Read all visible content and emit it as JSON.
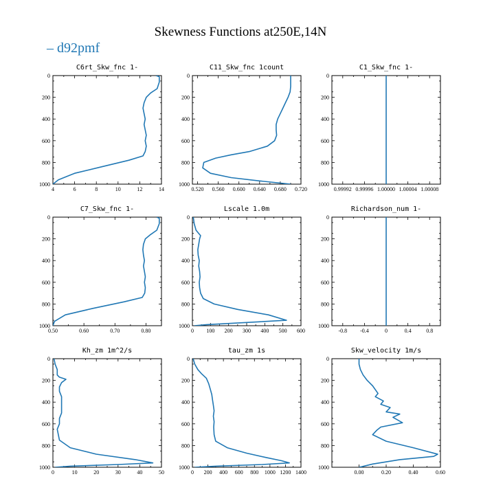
{
  "figure": {
    "title": "Skewness Functions at250E,14N",
    "legend": {
      "label": "d92pmf",
      "color": "#1f77b4"
    },
    "line_color": "#1f77b4"
  },
  "chart_data": [
    {
      "type": "line",
      "title": "C6rt_Skw_fnc   1-",
      "xlim": [
        4,
        14
      ],
      "ylim": [
        1000,
        0
      ],
      "xticks": [
        4,
        6,
        8,
        10,
        12,
        14
      ],
      "xtick_labels": [
        "4",
        "6",
        "8",
        "10",
        "12",
        "14"
      ],
      "yticks": [
        0,
        200,
        400,
        600,
        800,
        1000
      ],
      "ytick_labels": [
        "0",
        "200",
        "400",
        "600",
        "800",
        "1000"
      ],
      "series": [
        {
          "x": [
            13.5,
            13.8,
            13.8,
            13.6,
            13.0,
            12.6,
            12.4,
            12.3,
            12.4,
            12.5,
            12.4,
            12.5,
            12.6,
            12.5,
            12.6,
            12.5,
            12.3,
            11.0,
            8.5,
            6.0,
            4.5,
            4.0
          ],
          "y": [
            0,
            10,
            60,
            120,
            160,
            200,
            250,
            300,
            350,
            400,
            450,
            500,
            550,
            600,
            650,
            700,
            740,
            780,
            840,
            900,
            960,
            1000
          ]
        }
      ]
    },
    {
      "type": "line",
      "title": "C11_Skw_fnc   1count",
      "xlim": [
        0.51,
        0.72
      ],
      "ylim": [
        1000,
        0
      ],
      "xticks": [
        0.52,
        0.56,
        0.6,
        0.64,
        0.68,
        0.72
      ],
      "xtick_labels": [
        "0.520",
        "0.560",
        "0.600",
        "0.640",
        "0.680",
        "0.720"
      ],
      "yticks": [
        0,
        200,
        400,
        600,
        800,
        1000
      ],
      "ytick_labels": [
        "0",
        "200",
        "400",
        "600",
        "800",
        "1000"
      ],
      "series": [
        {
          "x": [
            0.7,
            0.7,
            0.7,
            0.699,
            0.695,
            0.69,
            0.685,
            0.68,
            0.675,
            0.672,
            0.672,
            0.673,
            0.669,
            0.655,
            0.62,
            0.585,
            0.555,
            0.532,
            0.53,
            0.545,
            0.585,
            0.64,
            0.7
          ],
          "y": [
            0,
            50,
            100,
            150,
            200,
            250,
            300,
            350,
            400,
            450,
            500,
            550,
            600,
            650,
            700,
            730,
            760,
            800,
            850,
            900,
            940,
            970,
            1000
          ]
        }
      ]
    },
    {
      "type": "line",
      "title": "C1_Skw_fnc   1-",
      "xlim": [
        0.9999,
        1.0001
      ],
      "ylim": [
        1000,
        0
      ],
      "xticks": [
        0.99992,
        0.99996,
        1.0,
        1.00004,
        1.00008
      ],
      "xtick_labels": [
        "0.99992",
        "0.99996",
        "1.00000",
        "1.00004",
        "1.00008"
      ],
      "yticks": [
        0,
        200,
        400,
        600,
        800,
        1000
      ],
      "ytick_labels": [
        "0",
        "200",
        "400",
        "600",
        "800",
        "1000"
      ],
      "series": [
        {
          "x": [
            1.0,
            1.0
          ],
          "y": [
            0,
            1000
          ]
        }
      ]
    },
    {
      "type": "line",
      "title": "C7_Skw_fnc   1-",
      "xlim": [
        0.5,
        0.85
      ],
      "ylim": [
        1000,
        0
      ],
      "xticks": [
        0.5,
        0.6,
        0.7,
        0.8
      ],
      "xtick_labels": [
        "0.50",
        "0.60",
        "0.70",
        "0.80"
      ],
      "yticks": [
        0,
        200,
        400,
        600,
        800,
        1000
      ],
      "ytick_labels": [
        "0",
        "200",
        "400",
        "600",
        "800",
        "1000"
      ],
      "series": [
        {
          "x": [
            0.835,
            0.843,
            0.843,
            0.835,
            0.815,
            0.798,
            0.792,
            0.79,
            0.792,
            0.795,
            0.792,
            0.795,
            0.798,
            0.795,
            0.798,
            0.796,
            0.788,
            0.73,
            0.63,
            0.54,
            0.505,
            0.5
          ],
          "y": [
            0,
            10,
            60,
            120,
            160,
            200,
            250,
            300,
            350,
            400,
            450,
            500,
            550,
            600,
            650,
            700,
            740,
            780,
            840,
            900,
            960,
            1000
          ]
        }
      ]
    },
    {
      "type": "line",
      "title": "Lscale   1.0m",
      "xlim": [
        0,
        600
      ],
      "ylim": [
        1000,
        0
      ],
      "xticks": [
        0,
        100,
        200,
        300,
        400,
        500,
        600
      ],
      "xtick_labels": [
        "0",
        "100",
        "200",
        "300",
        "400",
        "500",
        "600"
      ],
      "yticks": [
        0,
        200,
        400,
        600,
        800,
        1000
      ],
      "ytick_labels": [
        "0",
        "200",
        "400",
        "600",
        "800",
        "1000"
      ],
      "series": [
        {
          "x": [
            5,
            10,
            20,
            35,
            45,
            40,
            35,
            30,
            32,
            38,
            35,
            40,
            42,
            38,
            40,
            45,
            60,
            120,
            250,
            420,
            520,
            300,
            80,
            10
          ],
          "y": [
            0,
            60,
            120,
            150,
            170,
            200,
            250,
            300,
            350,
            400,
            450,
            500,
            550,
            600,
            650,
            700,
            750,
            800,
            850,
            900,
            950,
            970,
            990,
            1000
          ]
        }
      ]
    },
    {
      "type": "line",
      "title": "Richardson_num   1-",
      "xlim": [
        -1,
        1
      ],
      "ylim": [
        1000,
        0
      ],
      "xticks": [
        -0.8,
        -0.4,
        0,
        0.4,
        0.8
      ],
      "xtick_labels": [
        "-0.8",
        "-0.4",
        "0",
        "0.4",
        "0.8"
      ],
      "yticks": [
        0,
        200,
        400,
        600,
        800,
        1000
      ],
      "ytick_labels": [
        "0",
        "200",
        "400",
        "600",
        "800",
        "1000"
      ],
      "series": [
        {
          "x": [
            0,
            0
          ],
          "y": [
            0,
            1000
          ]
        }
      ]
    },
    {
      "type": "line",
      "title": "Kh_zm   1m^2/s",
      "xlim": [
        0,
        50
      ],
      "ylim": [
        1000,
        0
      ],
      "xticks": [
        0,
        10,
        20,
        30,
        40,
        50
      ],
      "xtick_labels": [
        "0",
        "10",
        "20",
        "30",
        "40",
        "50"
      ],
      "yticks": [
        0,
        200,
        400,
        600,
        800,
        1000
      ],
      "ytick_labels": [
        "0",
        "200",
        "400",
        "600",
        "800",
        "1000"
      ],
      "series": [
        {
          "x": [
            0.5,
            1,
            2,
            2,
            3,
            6,
            4,
            3,
            3,
            4,
            4,
            4,
            4,
            3,
            3,
            2,
            3,
            8,
            20,
            38,
            46,
            30,
            8,
            1
          ],
          "y": [
            0,
            50,
            100,
            150,
            170,
            190,
            220,
            260,
            300,
            350,
            400,
            450,
            500,
            550,
            600,
            650,
            750,
            820,
            880,
            930,
            960,
            975,
            990,
            1000
          ]
        }
      ]
    },
    {
      "type": "line",
      "title": "tau_zm   1s",
      "xlim": [
        0,
        1400
      ],
      "ylim": [
        1000,
        0
      ],
      "xticks": [
        0,
        200,
        400,
        600,
        800,
        1000,
        1200,
        1400
      ],
      "xtick_labels": [
        "0",
        "200",
        "400",
        "600",
        "800",
        "1000",
        "1200",
        "1400"
      ],
      "yticks": [
        0,
        200,
        400,
        600,
        800,
        1000
      ],
      "ytick_labels": [
        "0",
        "200",
        "400",
        "600",
        "800",
        "1000"
      ],
      "series": [
        {
          "x": [
            10,
            30,
            70,
            120,
            180,
            210,
            230,
            250,
            260,
            270,
            280,
            270,
            280,
            275,
            280,
            300,
            450,
            700,
            950,
            1150,
            1250,
            900,
            300,
            30
          ],
          "y": [
            0,
            50,
            100,
            140,
            180,
            230,
            280,
            330,
            380,
            430,
            480,
            530,
            580,
            630,
            700,
            760,
            820,
            870,
            910,
            940,
            960,
            975,
            990,
            1000
          ]
        }
      ]
    },
    {
      "type": "line",
      "title": "Skw_velocity   1m/s",
      "xlim": [
        -0.2,
        0.6
      ],
      "ylim": [
        1000,
        0
      ],
      "xticks": [
        0.0,
        0.2,
        0.4,
        0.6
      ],
      "xtick_labels": [
        "0.00",
        "0.20",
        "0.40",
        "0.60"
      ],
      "yticks": [
        0,
        200,
        400,
        600,
        800,
        1000
      ],
      "ytick_labels": [
        "0",
        "200",
        "400",
        "600",
        "800",
        "1000"
      ],
      "series": [
        {
          "x": [
            0.0,
            0.0,
            0.01,
            0.03,
            0.06,
            0.1,
            0.14,
            0.12,
            0.18,
            0.16,
            0.23,
            0.2,
            0.3,
            0.25,
            0.32,
            0.16,
            0.13,
            0.1,
            0.2,
            0.4,
            0.58,
            0.55,
            0.3,
            0.1,
            0.02,
            0.0
          ],
          "y": [
            0,
            50,
            100,
            150,
            200,
            250,
            320,
            350,
            390,
            420,
            450,
            490,
            510,
            540,
            590,
            630,
            660,
            700,
            760,
            820,
            880,
            900,
            930,
            970,
            995,
            1000
          ]
        }
      ]
    }
  ]
}
